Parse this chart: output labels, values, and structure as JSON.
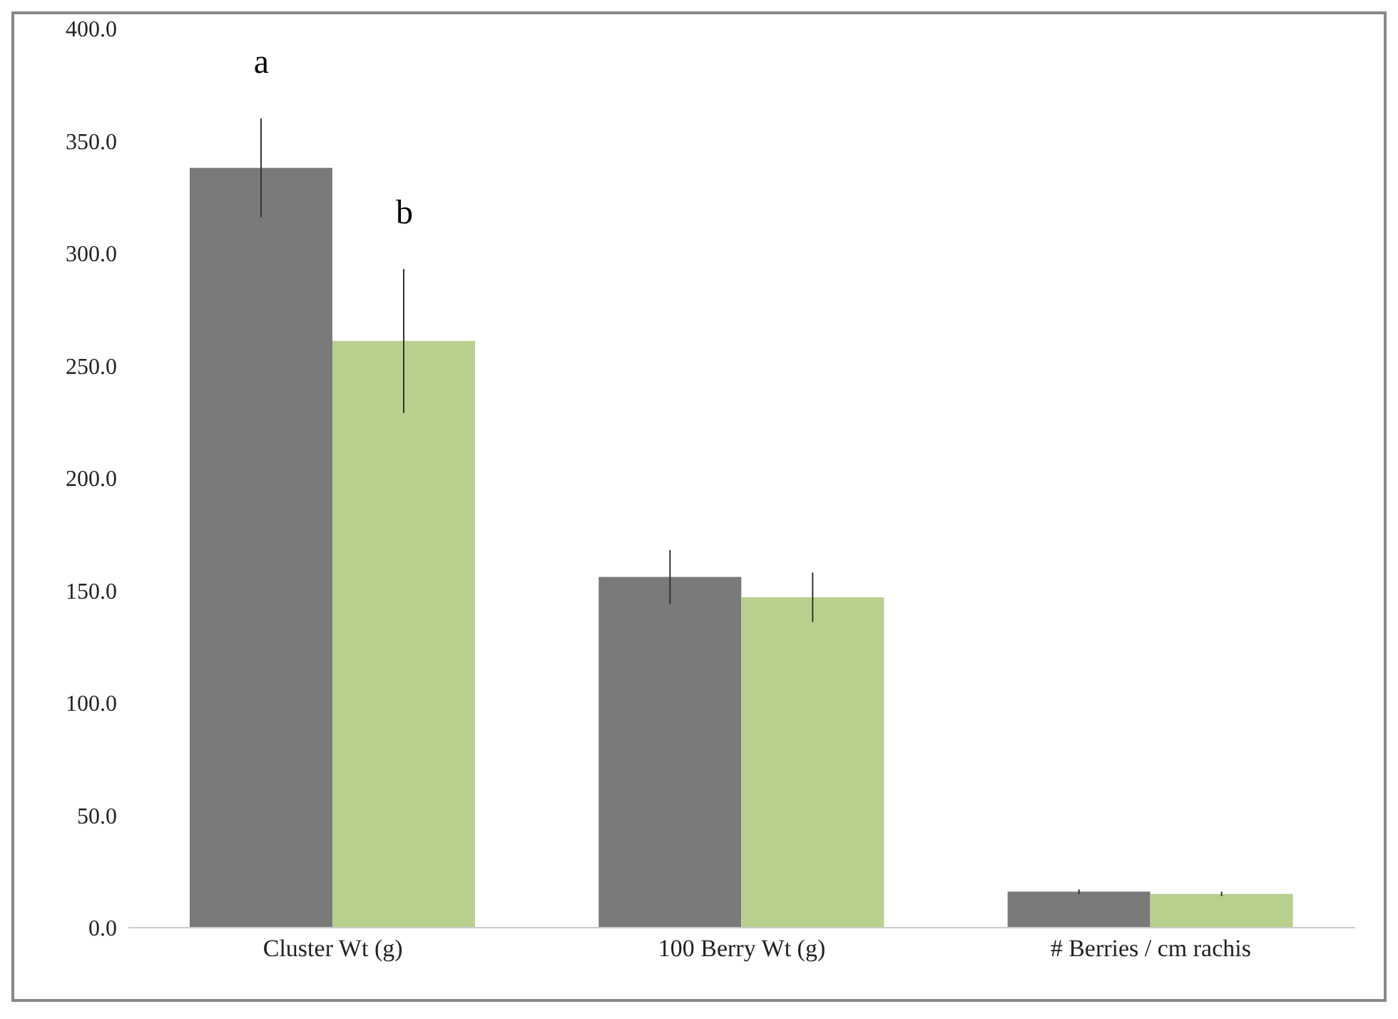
{
  "chart_data": {
    "type": "bar",
    "categories": [
      "Cluster Wt (g)",
      "100 Berry Wt (g)",
      "# Berries / cm rachis"
    ],
    "series": [
      {
        "color": "#7a7a7a",
        "values": [
          338,
          156,
          16
        ],
        "errors": [
          22,
          12,
          1
        ]
      },
      {
        "color": "#b8d08e",
        "values": [
          261,
          147,
          15
        ],
        "errors": [
          32,
          11,
          1
        ]
      }
    ],
    "ylim": [
      0,
      400
    ],
    "yticks": [
      {
        "value": 0,
        "label": "0.0"
      },
      {
        "value": 50,
        "label": "50.0"
      },
      {
        "value": 100,
        "label": "100.0"
      },
      {
        "value": 150,
        "label": "150.0"
      },
      {
        "value": 200,
        "label": "200.0"
      },
      {
        "value": 250,
        "label": "250.0"
      },
      {
        "value": 300,
        "label": "300.0"
      },
      {
        "value": 350,
        "label": "350.0"
      },
      {
        "value": 400,
        "label": "400.0"
      }
    ],
    "annotations": [
      "a",
      "b"
    ],
    "grid": false,
    "legend": false
  }
}
